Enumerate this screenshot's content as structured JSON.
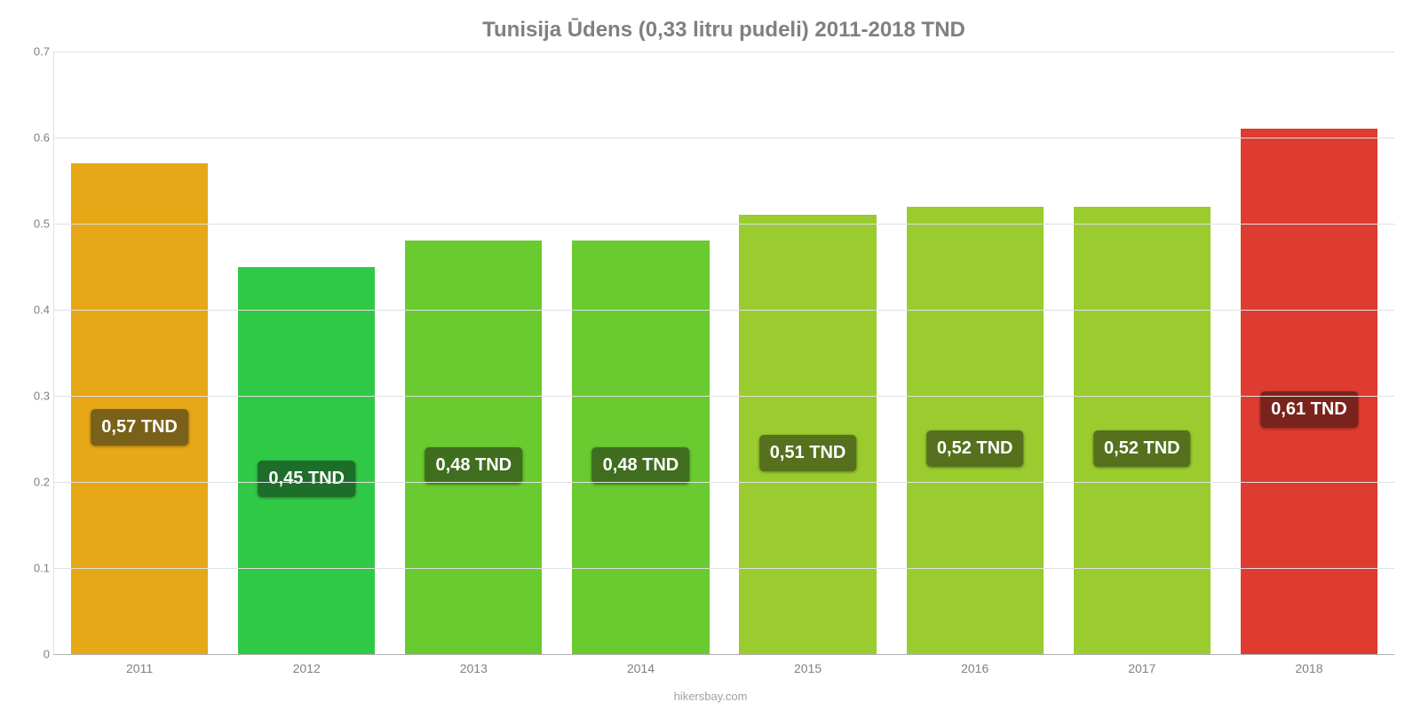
{
  "chart": {
    "type": "bar",
    "title": "Tunisija Ūdens (0,33 litru pudeli) 2011-2018 TND",
    "title_color": "#808080",
    "title_fontsize": 24,
    "background_color": "#ffffff",
    "grid_color": "#e0e0e0",
    "axis_color": "#b0b0b0",
    "label_color": "#808080",
    "label_fontsize": 14,
    "tick_fontsize": 13,
    "value_fontsize": 20,
    "bar_width_pct": 82,
    "ylim": [
      0,
      0.7
    ],
    "ytick_step": 0.1,
    "yticks": [
      "0",
      "0.1",
      "0.2",
      "0.3",
      "0.4",
      "0.5",
      "0.6",
      "0.7"
    ],
    "categories": [
      "2011",
      "2012",
      "2013",
      "2014",
      "2015",
      "2016",
      "2017",
      "2018"
    ],
    "values": [
      0.57,
      0.45,
      0.48,
      0.48,
      0.51,
      0.52,
      0.52,
      0.61
    ],
    "value_labels": [
      "0,57 TND",
      "0,45 TND",
      "0,48 TND",
      "0,48 TND",
      "0,51 TND",
      "0,52 TND",
      "0,52 TND",
      "0,61 TND"
    ],
    "bar_colors": [
      "#e6a817",
      "#30c946",
      "#69cb2f",
      "#69cb2f",
      "#9acc2f",
      "#9acc2f",
      "#9acc2f",
      "#de3c30"
    ],
    "badge_colors": [
      "#7a6119",
      "#1d6e2a",
      "#3f6e1e",
      "#3f6e1e",
      "#56701e",
      "#56701e",
      "#56701e",
      "#7a231d"
    ],
    "badge_top_pct": 50,
    "attribution": "hikersbay.com",
    "attribution_color": "#a0a0a0"
  }
}
